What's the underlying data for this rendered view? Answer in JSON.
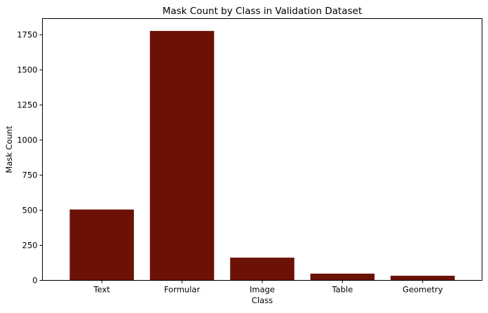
{
  "chart_data": {
    "type": "bar",
    "title": "Mask Count by Class in Validation Dataset",
    "xlabel": "Class",
    "ylabel": "Mask Count",
    "categories": [
      "Text",
      "Formular",
      "Image",
      "Table",
      "Geometry"
    ],
    "values": [
      505,
      1778,
      162,
      48,
      33
    ],
    "ylim": [
      0,
      1866
    ],
    "yticks": [
      0,
      250,
      500,
      750,
      1000,
      1250,
      1500,
      1750
    ],
    "ytick_labels": [
      "0",
      "250",
      "500",
      "750",
      "1000",
      "1250",
      "1500",
      "1750"
    ],
    "bar_color": "#6b1105",
    "grid": false,
    "legend": "none"
  }
}
